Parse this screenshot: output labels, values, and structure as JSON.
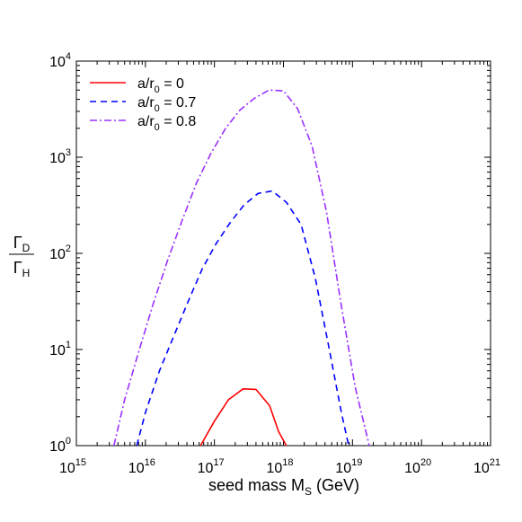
{
  "chart_data": {
    "type": "line",
    "xscale": "log",
    "yscale": "log",
    "xlim": [
      1000000000000000.0,
      1e+21
    ],
    "ylim": [
      1,
      10000
    ],
    "xlabel": {
      "main": "seed mass M",
      "sub": "S",
      "unit": " (GeV)"
    },
    "ylabel": {
      "num_main": "Γ",
      "num_sub": "D",
      "den_main": "Γ",
      "den_sub": "H"
    },
    "x_ticks": [
      {
        "base": "10",
        "exp": "15",
        "value": 1000000000000000.0
      },
      {
        "base": "10",
        "exp": "16",
        "value": 1e+16
      },
      {
        "base": "10",
        "exp": "17",
        "value": 1e+17
      },
      {
        "base": "10",
        "exp": "18",
        "value": 1e+18
      },
      {
        "base": "10",
        "exp": "19",
        "value": 1e+19
      },
      {
        "base": "10",
        "exp": "20",
        "value": 1e+20
      },
      {
        "base": "10",
        "exp": "21",
        "value": 1e+21
      }
    ],
    "y_ticks": [
      {
        "base": "10",
        "exp": "0",
        "value": 1
      },
      {
        "base": "10",
        "exp": "1",
        "value": 10
      },
      {
        "base": "10",
        "exp": "2",
        "value": 100
      },
      {
        "base": "10",
        "exp": "3",
        "value": 1000
      },
      {
        "base": "10",
        "exp": "4",
        "value": 10000
      }
    ],
    "grid": false,
    "legend_position": "top-left",
    "series": [
      {
        "label_main": "a/r",
        "label_sub": "0",
        "label_rest": " = 0",
        "color": "#ff0000",
        "style": "solid",
        "points": [
          [
            6.3e+16,
            1.0
          ],
          [
            1e+17,
            1.8
          ],
          [
            1.6e+17,
            3.0
          ],
          [
            2.6e+17,
            3.9
          ],
          [
            4e+17,
            3.85
          ],
          [
            6.3e+17,
            2.6
          ],
          [
            8.5e+17,
            1.4
          ],
          [
            1.1e+18,
            1.0
          ]
        ]
      },
      {
        "label_main": "a/r",
        "label_sub": "0",
        "label_rest": " = 0.7",
        "color": "#0000ff",
        "style": "dashed",
        "points": [
          [
            7500000000000000.0,
            1.0
          ],
          [
            1e+16,
            2.2
          ],
          [
            1.6e+16,
            6.0
          ],
          [
            2.6e+16,
            14
          ],
          [
            4.2e+16,
            32
          ],
          [
            6.6e+16,
            68
          ],
          [
            1.05e+17,
            125
          ],
          [
            1.7e+17,
            210
          ],
          [
            2.7e+17,
            320
          ],
          [
            4.3e+17,
            420
          ],
          [
            6.9e+17,
            445
          ],
          [
            1.1e+18,
            340
          ],
          [
            1.8e+18,
            200
          ],
          [
            2.9e+18,
            55
          ],
          [
            4.5e+18,
            11
          ],
          [
            6.9e+18,
            2.2
          ],
          [
            8.8e+18,
            1.0
          ]
        ]
      },
      {
        "label_main": "a/r",
        "label_sub": "0",
        "label_rest": " = 0.8",
        "color": "#9b30ff",
        "style": "dashdot",
        "points": [
          [
            3500000000000000.0,
            1.0
          ],
          [
            5000000000000000.0,
            3.0
          ],
          [
            8000000000000000.0,
            9.5
          ],
          [
            1.3e+16,
            30
          ],
          [
            2.1e+16,
            85
          ],
          [
            3.4e+16,
            220
          ],
          [
            5.5e+16,
            540
          ],
          [
            8.9e+16,
            1100
          ],
          [
            1.45e+17,
            2000
          ],
          [
            2.35e+17,
            3100
          ],
          [
            3.8e+17,
            4100
          ],
          [
            6.2e+17,
            5000
          ],
          [
            1e+18,
            4900
          ],
          [
            1.6e+18,
            3200
          ],
          [
            2.6e+18,
            1300
          ],
          [
            4.2e+18,
            270
          ],
          [
            6.8e+18,
            30
          ],
          [
            1.1e+19,
            4.0
          ],
          [
            1.75e+19,
            1.0
          ]
        ]
      }
    ]
  }
}
